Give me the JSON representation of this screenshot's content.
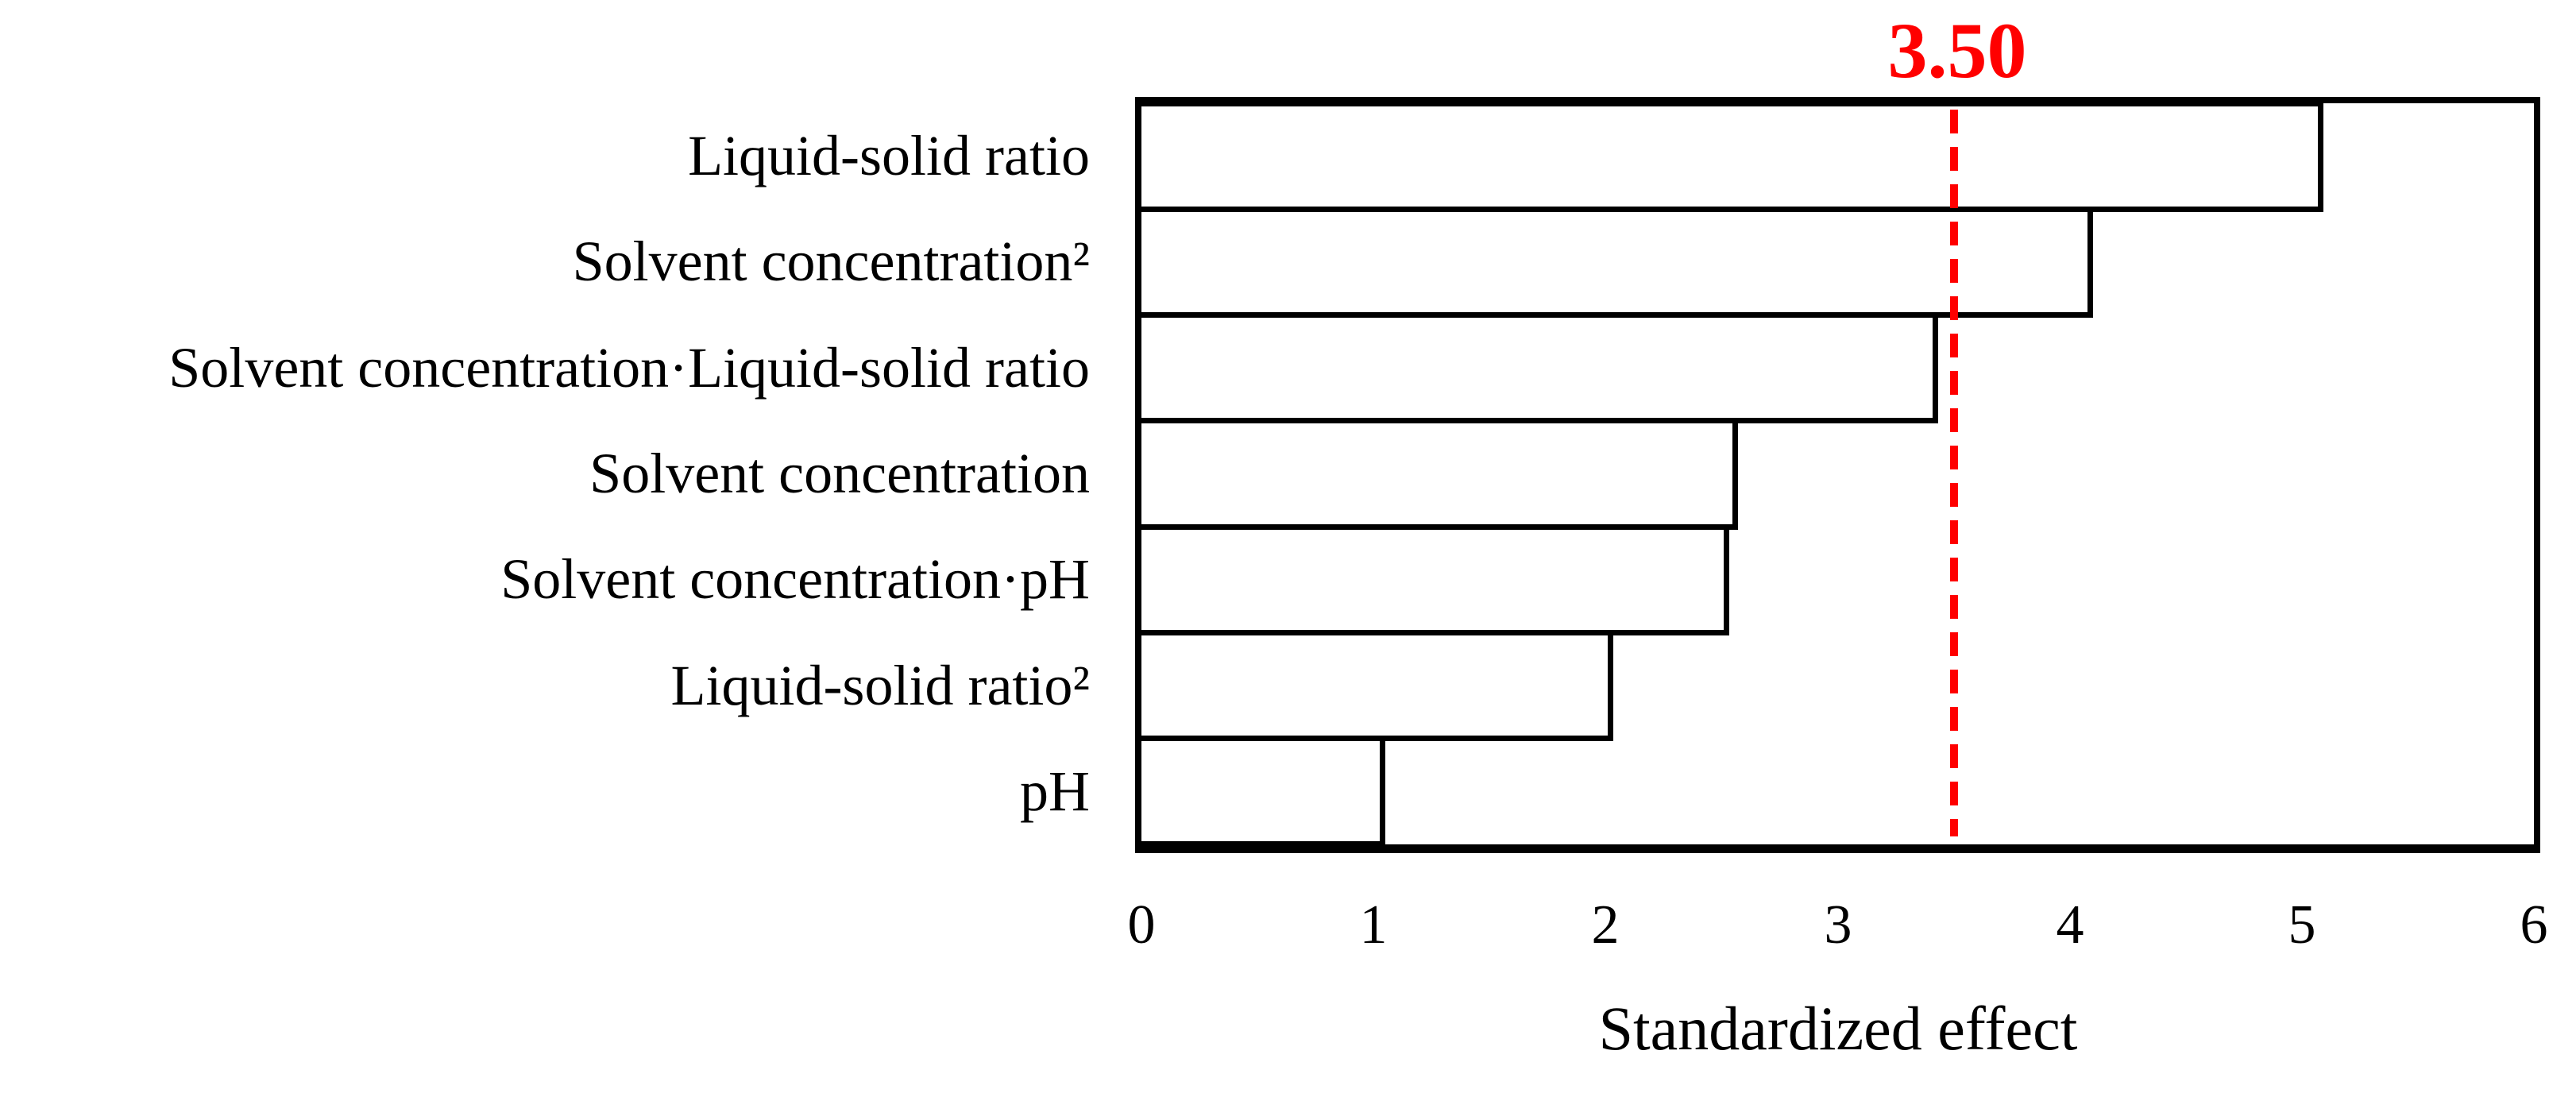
{
  "figure": {
    "background_color": "#ffffff",
    "bar_fill_color": "#ffffff",
    "bar_border_color": "#000000",
    "reference_line_color": "#ff0000"
  },
  "chart_data": {
    "type": "bar",
    "orientation": "horizontal",
    "title": "",
    "categories": [
      "Liquid-solid ratio",
      "Solvent concentration²",
      "Solvent concentration·Liquid-solid ratio",
      "Solvent concentration",
      "Solvent concentration·pH",
      "Liquid-solid ratio²",
      "pH"
    ],
    "values": [
      5.08,
      4.09,
      3.42,
      2.56,
      2.52,
      2.02,
      1.04
    ],
    "xlabel": "Standardized effect",
    "ylabel": "",
    "xlim": [
      0,
      6
    ],
    "xticks": [
      "0",
      "1",
      "2",
      "3",
      "4",
      "5",
      "6"
    ],
    "grid": false,
    "legend": null,
    "reference_line": {
      "value": 3.5,
      "label": "3.50",
      "color": "#ff0000",
      "style": "dashed"
    }
  }
}
